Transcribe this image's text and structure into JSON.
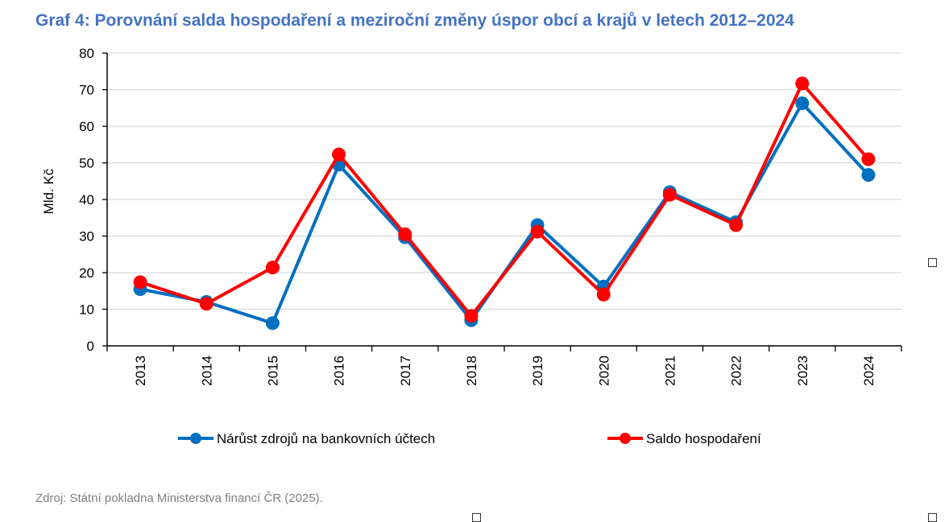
{
  "title": "Graf 4: Porovnání salda hospodaření a meziroční změny úspor obcí a krajů v letech 2012–2024",
  "source": "Zdroj: Státní pokladna Ministerstva financí ČR (2025).",
  "chart_data": {
    "type": "line",
    "title": "Graf 4: Porovnání salda hospodaření a meziroční změny úspor obcí a krajů v letech 2012–2024",
    "xlabel": "",
    "ylabel": "Mld. Kč",
    "ylim": [
      0,
      80
    ],
    "yticks": [
      "0",
      "10",
      "20",
      "30",
      "40",
      "50",
      "60",
      "70",
      "80"
    ],
    "grid": true,
    "legend": "bottom",
    "categories": [
      "2013",
      "2014",
      "2015",
      "2016",
      "2017",
      "2018",
      "2019",
      "2020",
      "2021",
      "2022",
      "2023",
      "2024"
    ],
    "series": [
      {
        "name": "Nárůst zdrojů na bankovních účtech",
        "color": "#0070c0",
        "values": [
          15.5,
          12,
          6.2,
          49.5,
          29.7,
          7,
          33,
          16.2,
          42,
          33.8,
          66.3,
          46.7
        ]
      },
      {
        "name": "Saldo hospodaření",
        "color": "#ff0000",
        "values": [
          17.4,
          11.5,
          21.4,
          52.3,
          30.5,
          8.2,
          31.2,
          14,
          41.3,
          33,
          71.7,
          51
        ]
      }
    ]
  }
}
